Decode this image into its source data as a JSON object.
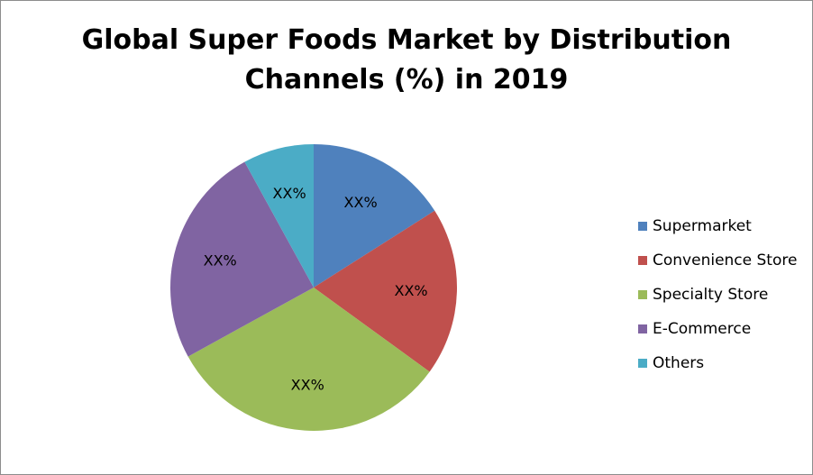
{
  "chart_data": {
    "type": "pie",
    "title_lines": [
      "Global Super Foods Market by Distribution",
      "Channels (%) in 2019"
    ],
    "categories": [
      "Supermarket",
      "Convenience Store",
      "Specialty Store",
      "E-Commerce",
      "Others"
    ],
    "values": [
      16,
      19,
      32,
      25,
      8
    ],
    "data_labels": [
      "XX%",
      "XX%",
      "XX%",
      "XX%",
      "XX%"
    ],
    "colors": [
      "#4f81bd",
      "#c0504d",
      "#9bbb59",
      "#8064a2",
      "#4bacc6"
    ],
    "legend_position": "right"
  }
}
